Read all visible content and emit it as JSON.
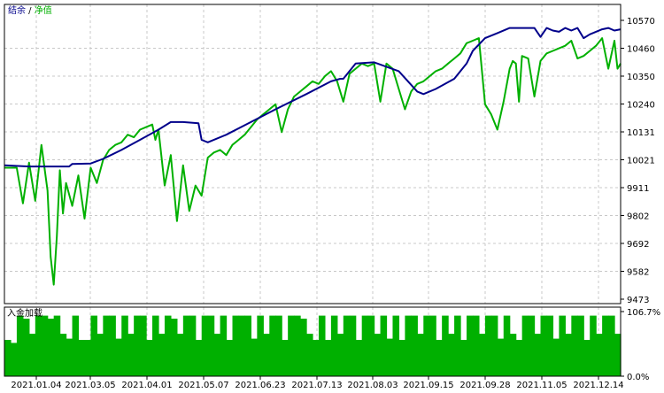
{
  "legend": {
    "balance_label": "结余",
    "separator": " / ",
    "equity_label": "净值",
    "balance_color": "#00008b",
    "equity_color": "#00b000"
  },
  "sub_panel": {
    "label": "入金加载",
    "bar_color": "#00b000"
  },
  "chart_data": [
    {
      "type": "line",
      "title": "",
      "xlabel": "",
      "ylabel": "",
      "ylim": [
        9473,
        10570
      ],
      "yticks": [
        "10570",
        "10460",
        "10350",
        "10240",
        "10131",
        "10021",
        "9911",
        "9802",
        "9692",
        "9582",
        "9473"
      ],
      "xticks": [
        "2021.01.04",
        "2021.03.05",
        "2021.04.01",
        "2021.05.07",
        "2021.06.23",
        "2021.07.13",
        "2021.08.03",
        "2021.09.15",
        "2021.09.28",
        "2021.11.05",
        "2021.12.14"
      ],
      "grid": true,
      "series": [
        {
          "name": "结余",
          "color": "#00008b",
          "x": [
            0,
            4,
            8,
            10.5,
            11,
            14,
            16,
            19,
            22,
            25,
            27,
            29,
            31.5,
            32,
            33,
            36,
            40,
            44,
            49,
            53,
            54.5,
            55,
            57,
            60,
            64,
            67,
            68,
            70,
            73,
            75,
            76,
            78,
            80,
            82,
            84,
            86,
            87,
            88,
            89,
            90,
            91,
            92,
            93,
            94,
            95,
            97,
            98,
            99,
            100
          ],
          "y": [
            10000,
            9995,
            9995,
            9995,
            10005,
            10007,
            10025,
            10060,
            10100,
            10140,
            10170,
            10170,
            10165,
            10100,
            10090,
            10120,
            10170,
            10220,
            10280,
            10330,
            10340,
            10340,
            10400,
            10405,
            10370,
            10290,
            10280,
            10300,
            10340,
            10400,
            10450,
            10500,
            10520,
            10540,
            10540,
            10540,
            10505,
            10540,
            10530,
            10525,
            10540,
            10530,
            10540,
            10500,
            10515,
            10535,
            10540,
            10530,
            10535
          ]
        },
        {
          "name": "净值",
          "color": "#00b000",
          "x": [
            0,
            2,
            3,
            4,
            5,
            6,
            7,
            7.5,
            8,
            8.5,
            9,
            9.5,
            10,
            11,
            12,
            13,
            14,
            15,
            16,
            17,
            18,
            19,
            20,
            21,
            22,
            23,
            24,
            24.5,
            25,
            26,
            27,
            28,
            29,
            30,
            31,
            32,
            33,
            34,
            35,
            36,
            37,
            38,
            39,
            40,
            41,
            42,
            43,
            44,
            45,
            46,
            47,
            48,
            49,
            50,
            51,
            52,
            53,
            54,
            55,
            56,
            57,
            58,
            59,
            60,
            61,
            62,
            63,
            64,
            65,
            66,
            67,
            68,
            69,
            70,
            71,
            72,
            73,
            74,
            75,
            76,
            77,
            78,
            79,
            80,
            81,
            82,
            82.5,
            83,
            83.5,
            84,
            85,
            86,
            87,
            88,
            89,
            90,
            91,
            92,
            93,
            94,
            95,
            96,
            97,
            98,
            99,
            99.5,
            100
          ],
          "y": [
            9990,
            9990,
            9850,
            10010,
            9860,
            10080,
            9900,
            9640,
            9530,
            9720,
            9980,
            9810,
            9930,
            9840,
            9960,
            9790,
            9990,
            9930,
            10020,
            10060,
            10080,
            10090,
            10120,
            10110,
            10140,
            10150,
            10160,
            10100,
            10140,
            9920,
            10040,
            9780,
            10000,
            9820,
            9920,
            9880,
            10030,
            10050,
            10060,
            10040,
            10080,
            10100,
            10120,
            10150,
            10180,
            10200,
            10220,
            10240,
            10130,
            10220,
            10270,
            10290,
            10310,
            10330,
            10320,
            10350,
            10370,
            10330,
            10250,
            10360,
            10380,
            10400,
            10390,
            10400,
            10250,
            10400,
            10380,
            10300,
            10220,
            10290,
            10320,
            10330,
            10350,
            10370,
            10380,
            10400,
            10420,
            10440,
            10480,
            10490,
            10500,
            10240,
            10200,
            10140,
            10250,
            10380,
            10410,
            10400,
            10250,
            10430,
            10420,
            10270,
            10410,
            10440,
            10450,
            10460,
            10470,
            10490,
            10420,
            10430,
            10450,
            10470,
            10500,
            10380,
            10490,
            10380,
            10400
          ]
        }
      ]
    },
    {
      "type": "bar",
      "title": "入金加载",
      "ylim": [
        0,
        106.7
      ],
      "yticks": [
        "106.7%",
        "0.0%"
      ],
      "values": [
        60,
        55,
        100,
        95,
        70,
        100,
        100,
        95,
        100,
        70,
        62,
        100,
        60,
        60,
        100,
        70,
        100,
        100,
        62,
        100,
        70,
        100,
        100,
        60,
        100,
        70,
        100,
        95,
        70,
        100,
        100,
        60,
        100,
        100,
        70,
        100,
        60,
        100,
        100,
        100,
        62,
        100,
        70,
        100,
        100,
        60,
        100,
        100,
        95,
        70,
        60,
        100,
        60,
        100,
        70,
        100,
        100,
        60,
        100,
        100,
        70,
        100,
        62,
        100,
        60,
        100,
        100,
        70,
        100,
        100,
        60,
        100,
        70,
        100,
        60,
        100,
        100,
        70,
        100,
        100,
        62,
        100,
        70,
        60,
        100,
        100,
        70,
        100,
        100,
        62,
        100,
        70,
        100,
        100,
        60,
        100,
        70,
        100,
        100,
        70
      ]
    }
  ]
}
